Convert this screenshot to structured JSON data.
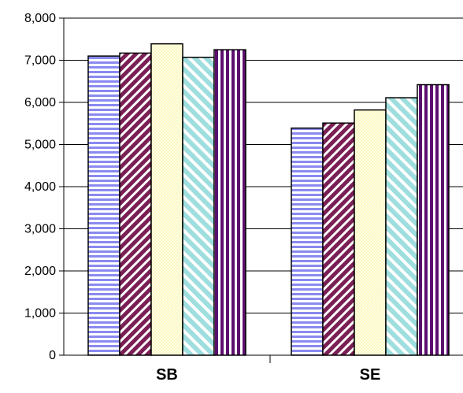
{
  "chart_data": {
    "type": "bar",
    "categories": [
      "SB",
      "SE"
    ],
    "series": [
      {
        "values": [
          7100,
          5390
        ],
        "pattern": "horizontal-stripes",
        "color": "#8a8af0",
        "bg": "#ffffff"
      },
      {
        "values": [
          7170,
          5510
        ],
        "pattern": "diagonal-stripes",
        "color": "#7a1f55",
        "bg": "#ffffff"
      },
      {
        "values": [
          7390,
          5820
        ],
        "pattern": "dotted",
        "color": "#f6f2a8",
        "bg": "#ffffe6"
      },
      {
        "values": [
          7070,
          6110
        ],
        "pattern": "diagonal-stripes-reverse",
        "color": "#9fdede",
        "bg": "#ffffff"
      },
      {
        "values": [
          7250,
          6420
        ],
        "pattern": "vertical-stripes",
        "color": "#5c0f6e",
        "bg": "#ffffff"
      }
    ],
    "ylim": [
      0,
      8000
    ],
    "ytick_labels": [
      "0",
      "1,000",
      "2,000",
      "3,000",
      "4,000",
      "5,000",
      "6,000",
      "7,000",
      "8,000"
    ],
    "grid": true,
    "title": "",
    "xlabel": "",
    "ylabel": ""
  }
}
